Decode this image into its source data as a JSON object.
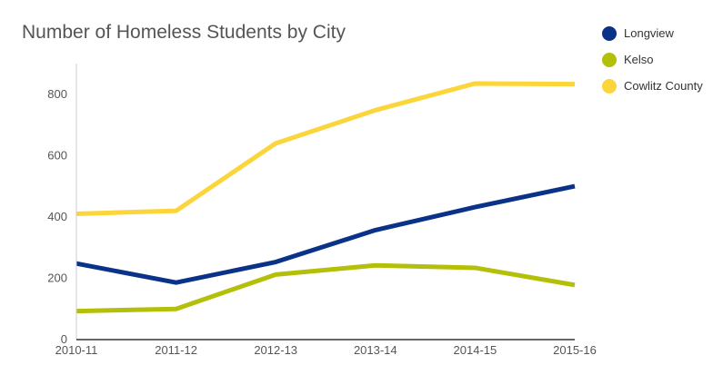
{
  "chart_data": {
    "type": "line",
    "title": "Number of Homeless Students by City",
    "xlabel": "",
    "ylabel": "",
    "categories": [
      "2010-11",
      "2011-12",
      "2012-13",
      "2013-14",
      "2014-15",
      "2015-16"
    ],
    "ylim": [
      0,
      900
    ],
    "yticks": [
      "0",
      "200",
      "400",
      "600",
      "800"
    ],
    "grid": false,
    "legend_position": "top-right",
    "series": [
      {
        "name": "Longview",
        "color": "#0b3289",
        "values": [
          248,
          186,
          253,
          357,
          432,
          500
        ]
      },
      {
        "name": "Kelso",
        "color": "#b4bf0a",
        "values": [
          93,
          100,
          212,
          242,
          234,
          178
        ]
      },
      {
        "name": "Cowlitz County",
        "color": "#fcd53a",
        "values": [
          410,
          420,
          640,
          748,
          835,
          833
        ]
      }
    ]
  }
}
